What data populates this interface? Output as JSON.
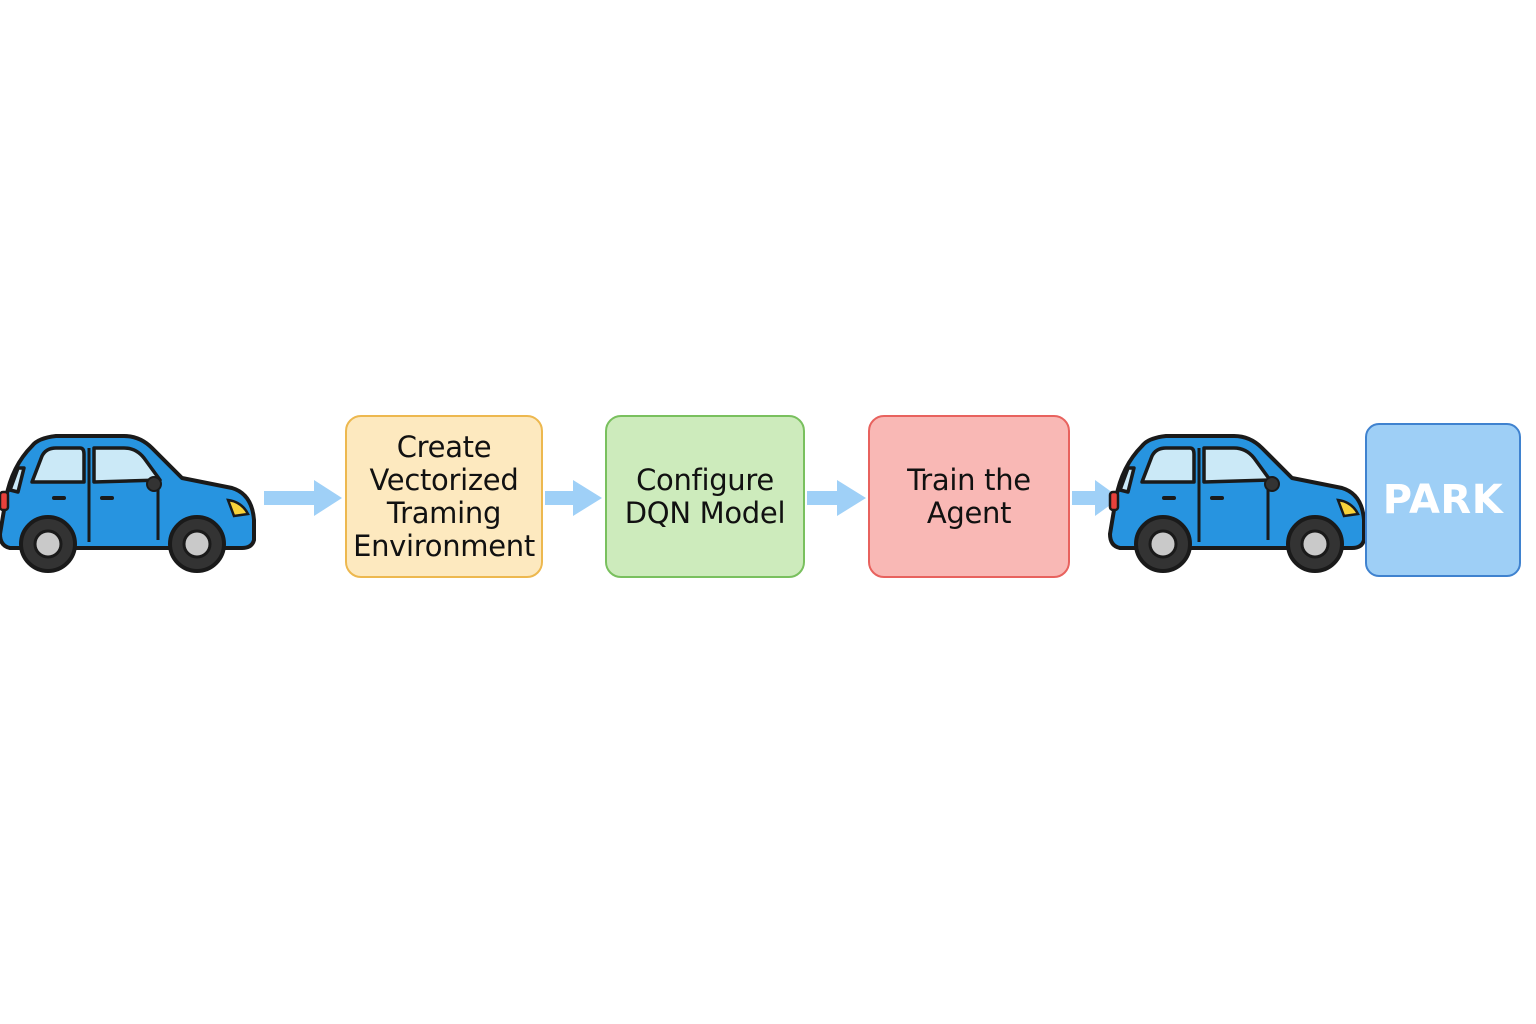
{
  "steps": [
    {
      "id": "create-env",
      "label": "Create\nVectorized\nTraming\nEnvironment",
      "fill": "#FDE9BF",
      "border": "#EDB84F"
    },
    {
      "id": "configure-dqn",
      "label": "Configure\nDQN Model",
      "fill": "#CDEBBC",
      "border": "#79C05E"
    },
    {
      "id": "train-agent",
      "label": "Train the\nAgent",
      "fill": "#F9B8B5",
      "border": "#E8625E"
    }
  ],
  "park": {
    "label": "PARK",
    "fill": "#9ECFF6",
    "border": "#3F82CF"
  },
  "colors": {
    "arrow": "#9FD0F7",
    "car_body": "#2794E0",
    "car_outline": "#1A1A1A",
    "car_window": "#CBE9F7",
    "tire": "#333333",
    "hubcap": "#C9C9C9",
    "headlight": "#F8D33A",
    "taillight": "#E8413B"
  },
  "icons": {
    "start_car": "car-icon",
    "end_car": "car-icon"
  }
}
